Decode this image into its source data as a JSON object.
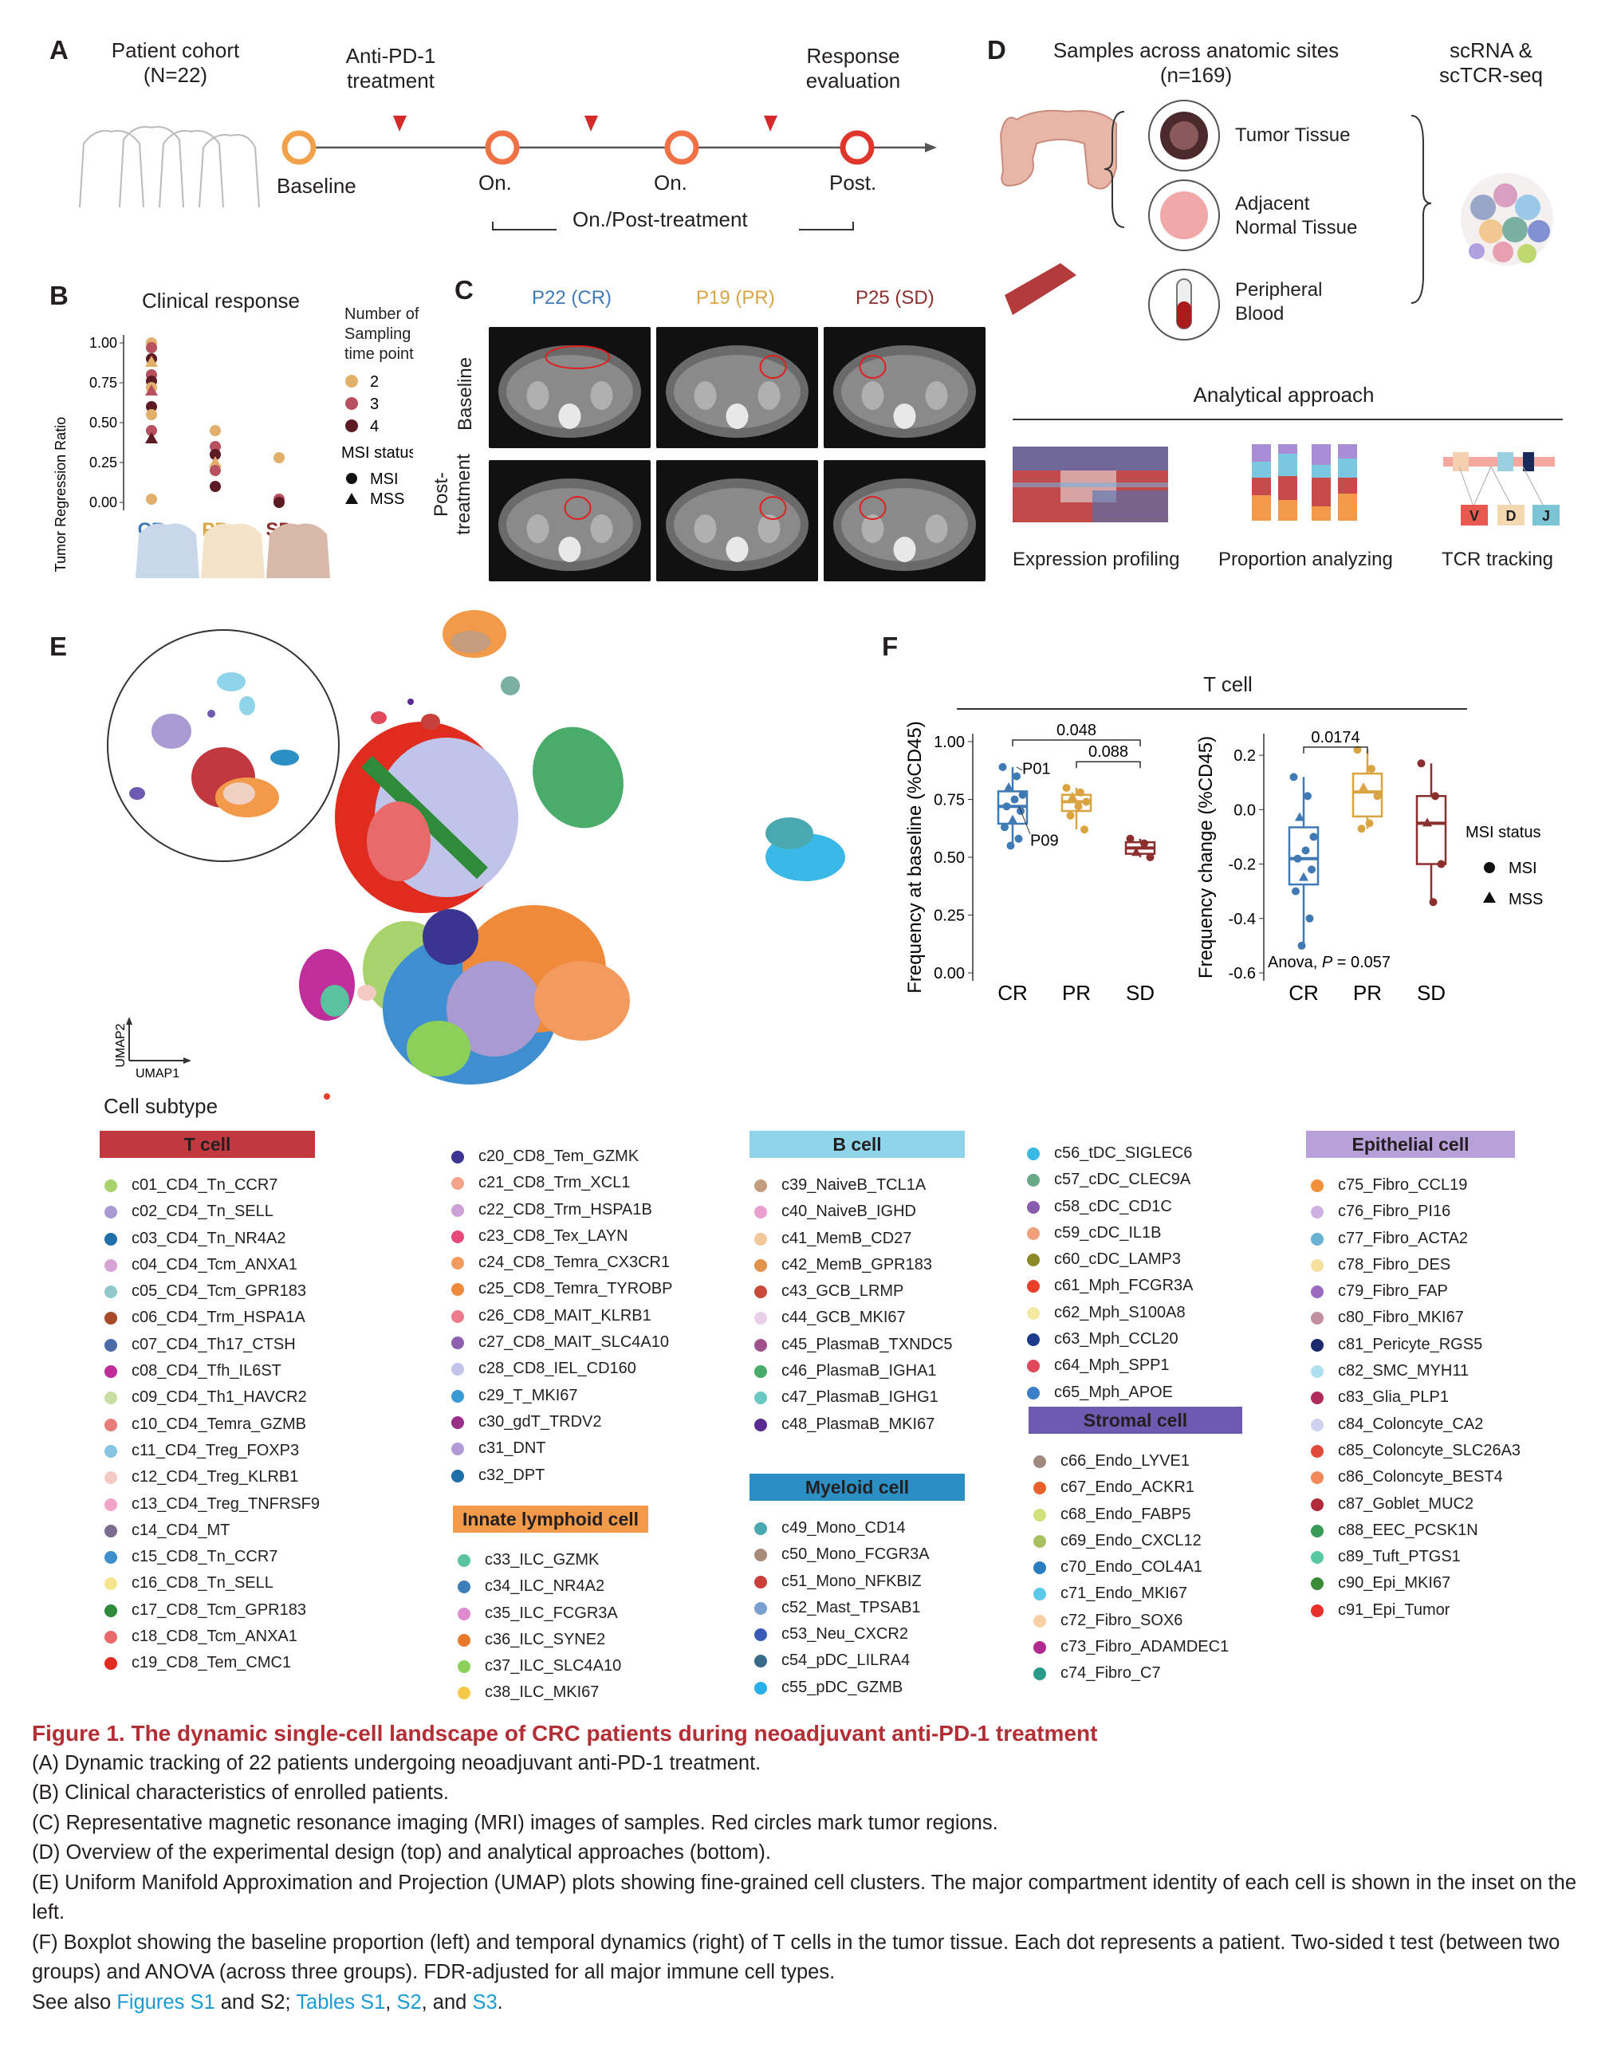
{
  "panel_labels": {
    "a": "A",
    "b": "B",
    "c": "C",
    "d": "D",
    "e": "E",
    "f": "F"
  },
  "panelA": {
    "cohort": "Patient cohort",
    "cohort_n": "(N=22)",
    "treatment_l1": "Anti-PD-1",
    "treatment_l2": "treatment",
    "response_l1": "Response",
    "response_l2": "evaluation",
    "timepoints": [
      "Baseline",
      "On.",
      "On.",
      "Post."
    ],
    "bracket_label": "On./Post-treatment"
  },
  "panelB": {
    "title": "Clinical response",
    "legend_title_l1": "Number of",
    "legend_title_l2": "Sampling",
    "legend_title_l3": "time point",
    "sampling_levels": [
      "2",
      "3",
      "4"
    ],
    "sampling_colors": [
      "#e3b06c",
      "#b8505f",
      "#5c1a23"
    ],
    "msi_title": "MSI status",
    "msi_levels": [
      "MSI",
      "MSS"
    ]
  },
  "panelC": {
    "patients": [
      "P22 (CR)",
      "P19 (PR)",
      "P25 (SD)"
    ],
    "patient_colors": [
      "#3f7ab5",
      "#d9a441",
      "#8b2e2e"
    ],
    "row_baseline": "Baseline",
    "row_post_l1": "Post-",
    "row_post_l2": "treatment"
  },
  "panelD": {
    "title_l1": "Samples across anatomic sites",
    "title_l2": "(n=169)",
    "seq_l1": "scRNA &",
    "seq_l2": "scTCR-seq",
    "sites": [
      "Tumor Tissue",
      "Adjacent",
      "Normal Tissue",
      "Peripheral",
      "Blood"
    ],
    "approach_title": "Analytical approach",
    "approaches": [
      "Expression profiling",
      "Proportion analyzing",
      "TCR tracking"
    ],
    "tcr_segments": [
      "V",
      "D",
      "J"
    ]
  },
  "panelE": {
    "axis_x": "UMAP1",
    "axis_y": "UMAP2"
  },
  "panelF": {
    "title": "T cell",
    "left_ylabel": "Frequency at baseline (%CD45)",
    "right_ylabel": "Frequency change (%CD45)",
    "anova_prefix": "Anova, ",
    "anova_p": "P",
    "anova_value": " = 0.057",
    "msi_title": "MSI status",
    "msi_levels": [
      "MSI",
      "MSS"
    ],
    "left_annot": [
      "P01",
      "P09"
    ],
    "pvals_left": [
      "0.048",
      "0.088"
    ],
    "pval_right": "0.0174"
  },
  "chart_data": [
    {
      "type": "scatter",
      "title": "Clinical response",
      "ylabel": "Tumor Regression Ratio",
      "categories": [
        "CR",
        "PR",
        "SD"
      ],
      "ylim": [
        0,
        1.0
      ],
      "yticks": [
        "1.00",
        "0.75",
        "0.50",
        "0.25",
        "0.00"
      ],
      "points": {
        "CR": [
          1.0,
          0.97,
          0.9,
          0.88,
          0.8,
          0.76,
          0.72,
          0.7,
          0.6,
          0.55,
          0.45,
          0.4,
          0.02
        ],
        "PR": [
          0.45,
          0.35,
          0.3,
          0.25,
          0.2,
          0.1
        ],
        "SD": [
          0.28,
          0.02,
          0.0
        ]
      }
    },
    {
      "type": "box",
      "title": "T cell",
      "ylabel": "Frequency at baseline (%CD45)",
      "categories": [
        "CR",
        "PR",
        "SD"
      ],
      "ylim": [
        0,
        1.0
      ],
      "yticks": [
        "1.00",
        "0.75",
        "0.50",
        "0.25",
        "0.00"
      ],
      "series": [
        {
          "name": "CR",
          "values": [
            0.89,
            0.85,
            0.8,
            0.77,
            0.75,
            0.72,
            0.7,
            0.66,
            0.63,
            0.58,
            0.55
          ]
        },
        {
          "name": "PR",
          "values": [
            0.8,
            0.78,
            0.76,
            0.74,
            0.72,
            0.68,
            0.62
          ]
        },
        {
          "name": "SD",
          "values": [
            0.58,
            0.56,
            0.52,
            0.5
          ]
        }
      ]
    },
    {
      "type": "box",
      "title": "T cell",
      "ylabel": "Frequency change (%CD45)",
      "categories": [
        "CR",
        "PR",
        "SD"
      ],
      "ylim": [
        -0.6,
        0.25
      ],
      "yticks": [
        "0.2",
        "0.0",
        "-0.2",
        "-0.4",
        "-0.6"
      ],
      "series": [
        {
          "name": "CR",
          "values": [
            0.12,
            0.05,
            -0.03,
            -0.1,
            -0.15,
            -0.18,
            -0.22,
            -0.25,
            -0.3,
            -0.4,
            -0.5
          ]
        },
        {
          "name": "PR",
          "values": [
            0.22,
            0.15,
            0.08,
            0.05,
            -0.05,
            -0.07
          ]
        },
        {
          "name": "SD",
          "values": [
            0.17,
            0.05,
            -0.05,
            -0.2,
            -0.34
          ]
        }
      ]
    }
  ],
  "legend": {
    "title": "Cell subtype",
    "groups": [
      {
        "name": "T cell",
        "color": "#c1393f",
        "items": [
          [
            "c01_CD4_Tn_CCR7",
            "#a8d26b"
          ],
          [
            "c02_CD4_Tn_SELL",
            "#a99bd1"
          ],
          [
            "c03_CD4_Tn_NR4A2",
            "#1f6fa8"
          ],
          [
            "c04_CD4_Tcm_ANXA1",
            "#d6a3d6"
          ],
          [
            "c05_CD4_Tcm_GPR183",
            "#8fc9c9"
          ],
          [
            "c06_CD4_Trm_HSPA1A",
            "#a64a2a"
          ],
          [
            "c07_CD4_Th17_CTSH",
            "#4a6aa8"
          ],
          [
            "c08_CD4_Tfh_IL6ST",
            "#c02e9b"
          ],
          [
            "c09_CD4_Th1_HAVCR2",
            "#c8dea2"
          ],
          [
            "c10_CD4_Temra_GZMB",
            "#e87c78"
          ],
          [
            "c11_CD4_Treg_FOXP3",
            "#86c3e0"
          ],
          [
            "c12_CD4_Treg_KLRB1",
            "#f3c9c4"
          ],
          [
            "c13_CD4_Treg_TNFRSF9",
            "#f1a3c8"
          ],
          [
            "c14_CD4_MT",
            "#7a6b8f"
          ],
          [
            "c15_CD8_Tn_CCR7",
            "#3e8ed0"
          ],
          [
            "c16_CD8_Tn_SELL",
            "#f5e58f"
          ],
          [
            "c17_CD8_Tcm_GPR183",
            "#2f8a3a"
          ],
          [
            "c18_CD8_Tcm_ANXA1",
            "#e86a6a"
          ],
          [
            "c19_CD8_Tem_CMC1",
            "#e02c1f"
          ]
        ]
      },
      {
        "name": "",
        "color": "",
        "items": [
          [
            "c20_CD8_Tem_GZMK",
            "#3a3590"
          ],
          [
            "c21_CD8_Trm_XCL1",
            "#f5a48a"
          ],
          [
            "c22_CD8_Trm_HSPA1B",
            "#cda0d6"
          ],
          [
            "c23_CD8_Tex_LAYN",
            "#e64a7a"
          ],
          [
            "c24_CD8_Temra_CX3CR1",
            "#f39a5e"
          ],
          [
            "c25_CD8_Temra_TYROBP",
            "#f08a3b"
          ],
          [
            "c26_CD8_MAIT_KLRB1",
            "#ec7c8c"
          ],
          [
            "c27_CD8_MAIT_SLC4A10",
            "#8c5fb0"
          ],
          [
            "c28_CD8_IEL_CD160",
            "#bfc4e8"
          ],
          [
            "c29_T_MKI67",
            "#3a9ad4"
          ],
          [
            "c30_gdT_TRDV2",
            "#9a2f8a"
          ],
          [
            "c31_DNT",
            "#b39ad6"
          ],
          [
            "c32_DPT",
            "#1e6ea8"
          ]
        ]
      },
      {
        "name": "Innate lymphoid cell",
        "color": "#f29a4a",
        "items": [
          [
            "c33_ILC_GZMK",
            "#5bc2a0"
          ],
          [
            "c34_ILC_NR4A2",
            "#3a7fb8"
          ],
          [
            "c35_ILC_FCGR3A",
            "#e08ad0"
          ],
          [
            "c36_ILC_SYNE2",
            "#e8782c"
          ],
          [
            "c37_ILC_SLC4A10",
            "#8cd05a"
          ],
          [
            "c38_ILC_MKI67",
            "#f5c84a"
          ]
        ]
      },
      {
        "name": "B cell",
        "color": "#8fd4e8",
        "items": [
          [
            "c39_NaiveB_TCL1A",
            "#c49c7e"
          ],
          [
            "c40_NaiveB_IGHD",
            "#e8a0d0"
          ],
          [
            "c41_MemB_CD27",
            "#f0c89a"
          ],
          [
            "c42_MemB_GPR183",
            "#e0944a"
          ],
          [
            "c43_GCB_LRMP",
            "#c84a3a"
          ],
          [
            "c44_GCB_MKI67",
            "#e8d0e8"
          ],
          [
            "c45_PlasmaB_TXNDC5",
            "#a0508a"
          ],
          [
            "c46_PlasmaB_IGHA1",
            "#4aac6a"
          ],
          [
            "c47_PlasmaB_IGHG1",
            "#6ac8c0"
          ],
          [
            "c48_PlasmaB_MKI67",
            "#5a2a90"
          ]
        ]
      },
      {
        "name": "Myeloid cell",
        "color": "#2c8fc4",
        "items": [
          [
            "c49_Mono_CD14",
            "#4aa8b0"
          ],
          [
            "c50_Mono_FCGR3A",
            "#a88a7a"
          ],
          [
            "c51_Mono_NFKBIZ",
            "#c8403a"
          ],
          [
            "c52_Mast_TPSAB1",
            "#7aa0d0"
          ],
          [
            "c53_Neu_CXCR2",
            "#3a5ab8"
          ],
          [
            "c54_pDC_LILRA4",
            "#3a6a8a"
          ],
          [
            "c55_pDC_GZMB",
            "#2ab0e8"
          ]
        ]
      },
      {
        "name": "",
        "color": "",
        "items": [
          [
            "c56_tDC_SIGLEC6",
            "#3ab8e8"
          ],
          [
            "c57_cDC_CLEC9A",
            "#6aa88a"
          ],
          [
            "c58_cDC_CD1C",
            "#8a5ab0"
          ],
          [
            "c59_cDC_IL1B",
            "#f0a07a"
          ],
          [
            "c60_cDC_LAMP3",
            "#8a8a2a"
          ],
          [
            "c61_Mph_FCGR3A",
            "#e8402a"
          ],
          [
            "c62_Mph_S100A8",
            "#f5e8a0"
          ],
          [
            "c63_Mph_CCL20",
            "#1e3a8a"
          ],
          [
            "c64_Mph_SPP1",
            "#e04a5a"
          ],
          [
            "c65_Mph_APOE",
            "#3a7ec8"
          ]
        ]
      },
      {
        "name": "Stromal cell",
        "color": "#6e5ab0",
        "items": [
          [
            "c66_Endo_LYVE1",
            "#a08a80"
          ],
          [
            "c67_Endo_ACKR1",
            "#e8602a"
          ],
          [
            "c68_Endo_FABP5",
            "#d0e07a"
          ],
          [
            "c69_Endo_CXCL12",
            "#a8c060"
          ],
          [
            "c70_Endo_COL4A1",
            "#2a7ec0"
          ],
          [
            "c71_Endo_MKI67",
            "#5ac8e8"
          ],
          [
            "c72_Fibro_SOX6",
            "#f8d0a8"
          ],
          [
            "c73_Fibro_ADAMDEC1",
            "#b02a90"
          ],
          [
            "c74_Fibro_C7",
            "#2a9a8a"
          ]
        ]
      },
      {
        "name": "Epithelial cell",
        "color": "#b8a0d8",
        "items": [
          [
            "c75_Fibro_CCL19",
            "#f0903a"
          ],
          [
            "c76_Fibro_PI16",
            "#d0b0e0"
          ],
          [
            "c77_Fibro_ACTA2",
            "#6ab0d0"
          ],
          [
            "c78_Fibro_DES",
            "#f5e0a0"
          ],
          [
            "c79_Fibro_FAP",
            "#9a6ac0"
          ],
          [
            "c80_Fibro_MKI67",
            "#c090a0"
          ],
          [
            "c81_Pericyte_RGS5",
            "#1a2a6a"
          ],
          [
            "c82_SMC_MYH11",
            "#b0e0f0"
          ],
          [
            "c83_Glia_PLP1",
            "#b02a5a"
          ],
          [
            "c84_Coloncyte_CA2",
            "#d0d0f0"
          ],
          [
            "c85_Coloncyte_SLC26A3",
            "#e04a3a"
          ],
          [
            "c86_Coloncyte_BEST4",
            "#f08a5a"
          ],
          [
            "c87_Goblet_MUC2",
            "#b02a3a"
          ],
          [
            "c88_EEC_PCSK1N",
            "#3a9a5a"
          ],
          [
            "c89_Tuft_PTGS1",
            "#5ac8a0"
          ],
          [
            "c90_Epi_MKI67",
            "#3a8a3a"
          ],
          [
            "c91_Epi_Tumor",
            "#e8302a"
          ]
        ]
      }
    ]
  },
  "caption": {
    "title": "Figure 1.  The dynamic single-cell landscape of CRC patients during neoadjuvant anti-PD-1 treatment",
    "lineA": "(A) Dynamic tracking of 22 patients undergoing neoadjuvant anti-PD-1 treatment.",
    "lineB": "(B) Clinical characteristics of enrolled patients.",
    "lineC": "(C) Representative magnetic resonance imaging (MRI) images of samples. Red circles mark tumor regions.",
    "lineD": "(D) Overview of the experimental design (top) and analytical approaches (bottom).",
    "lineE": "(E) Uniform Manifold Approximation and Projection (UMAP) plots showing fine-grained cell clusters. The major compartment identity of each cell is shown in the inset on the left.",
    "lineF": "(F) Boxplot showing the baseline proportion (left) and temporal dynamics (right) of T cells in the tumor tissue. Each dot represents a patient. Two-sided t test (between two groups) and ANOVA (across three groups). FDR-adjusted for all major immune cell types.",
    "see_prefix": "See also ",
    "see_fig": "Figures S1",
    "see_and1": " and S2; ",
    "see_tab1": "Tables S1",
    "see_comma": ", ",
    "see_tab2": "S2",
    "see_and2": ", and ",
    "see_tab3": "S3",
    "see_end": "."
  }
}
